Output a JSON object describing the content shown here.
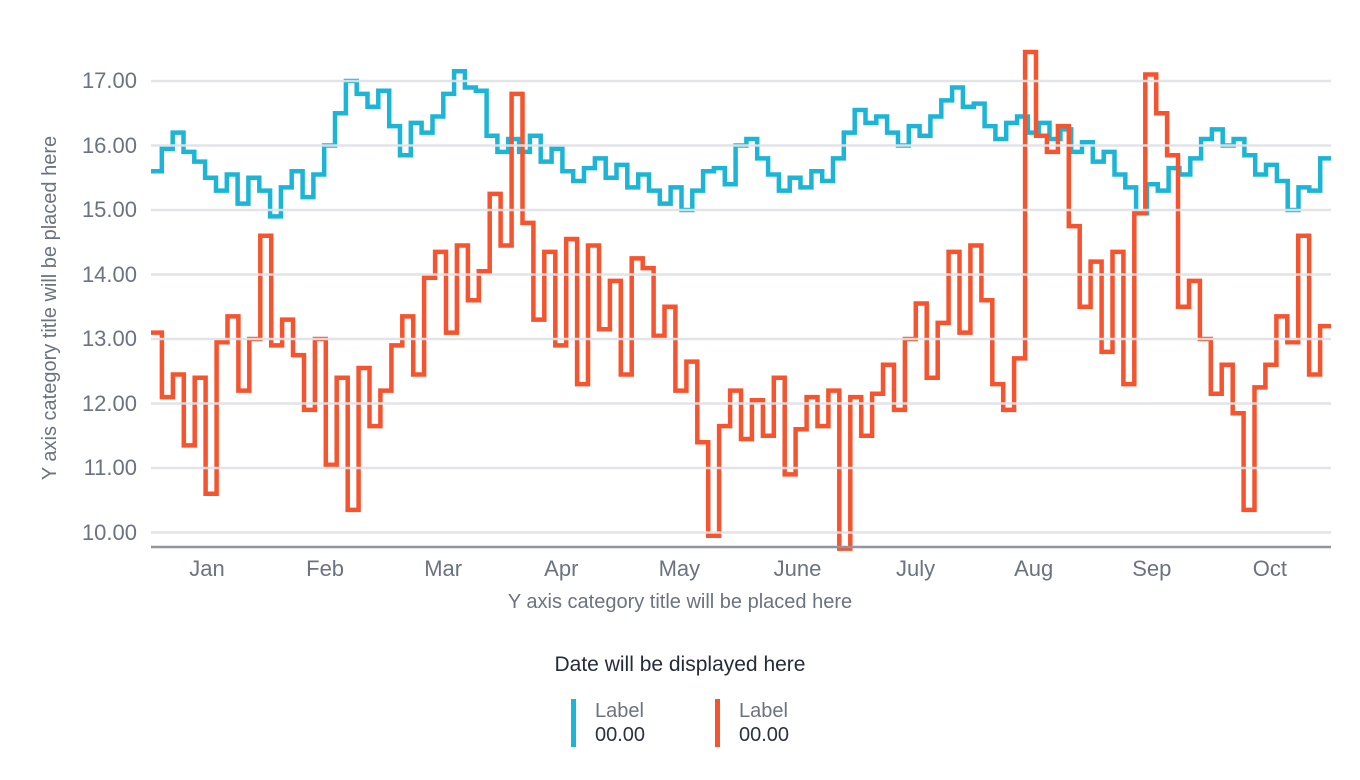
{
  "colors": {
    "series_teal": "#1db5d6",
    "series_orange": "#f5542e",
    "gridline": "#e0e2e6",
    "axis_line": "#8f96a1",
    "axis_text": "#6b7380",
    "dark_text": "#242c3a"
  },
  "tooltip": {
    "date_placeholder": "Date will be displayed here"
  },
  "chart_data": {
    "type": "line",
    "line_style": "step-after",
    "title": "",
    "y_axis_title": "Y axis category title will be placed here",
    "x_axis_title": "Y axis category title will be placed here",
    "grid": "horizontal",
    "legend_position": "bottom",
    "ylim": [
      9.7,
      17.6
    ],
    "y_tick_labels": [
      "17.00",
      "16.00",
      "15.00",
      "14.00",
      "13.00",
      "12.00",
      "11.00",
      "10.00"
    ],
    "y_tick_values": [
      17,
      16,
      15,
      14,
      13,
      12,
      11,
      10
    ],
    "x_tick_labels": [
      "Jan",
      "Feb",
      "Mar",
      "Apr",
      "May",
      "June",
      "July",
      "Aug",
      "Sep",
      "Oct"
    ],
    "series": [
      {
        "name": "Label",
        "value_label": "00.00",
        "color": "#1db5d6",
        "values": [
          15.6,
          15.95,
          16.2,
          15.9,
          15.75,
          15.5,
          15.3,
          15.55,
          15.1,
          15.5,
          15.3,
          14.9,
          15.35,
          15.6,
          15.2,
          15.55,
          16.0,
          16.5,
          17.0,
          16.8,
          16.6,
          16.85,
          16.3,
          15.85,
          16.35,
          16.2,
          16.45,
          16.8,
          17.15,
          16.9,
          16.85,
          16.15,
          15.9,
          16.1,
          15.9,
          16.15,
          15.75,
          15.95,
          15.6,
          15.45,
          15.65,
          15.8,
          15.5,
          15.7,
          15.35,
          15.55,
          15.3,
          15.1,
          15.35,
          15.0,
          15.3,
          15.6,
          15.65,
          15.4,
          16.0,
          16.1,
          15.8,
          15.55,
          15.3,
          15.5,
          15.35,
          15.6,
          15.45,
          15.8,
          16.2,
          16.55,
          16.35,
          16.45,
          16.2,
          16.0,
          16.3,
          16.15,
          16.45,
          16.7,
          16.9,
          16.6,
          16.65,
          16.3,
          16.1,
          16.35,
          16.45,
          16.2,
          16.35,
          16.1,
          16.25,
          15.9,
          16.05,
          15.75,
          15.9,
          15.55,
          15.35,
          14.95,
          15.4,
          15.3,
          15.65,
          15.55,
          15.8,
          16.1,
          16.25,
          16.0,
          16.1,
          15.85,
          15.55,
          15.7,
          15.45,
          15.0,
          15.35,
          15.3,
          15.8
        ]
      },
      {
        "name": "Label",
        "value_label": "00.00",
        "color": "#f5542e",
        "values": [
          13.1,
          12.1,
          12.45,
          11.35,
          12.4,
          10.6,
          12.95,
          13.35,
          12.2,
          13.0,
          14.6,
          12.9,
          13.3,
          12.75,
          11.9,
          13.0,
          11.05,
          12.4,
          10.35,
          12.55,
          11.65,
          12.2,
          12.9,
          13.35,
          12.45,
          13.95,
          14.35,
          13.1,
          14.45,
          13.6,
          14.05,
          15.25,
          14.45,
          16.8,
          14.8,
          13.3,
          14.35,
          12.9,
          14.55,
          12.3,
          14.45,
          13.15,
          13.9,
          12.45,
          14.25,
          14.1,
          13.05,
          13.5,
          12.2,
          12.65,
          11.4,
          9.95,
          11.65,
          12.2,
          11.45,
          12.05,
          11.5,
          12.4,
          10.9,
          11.6,
          12.1,
          11.65,
          12.2,
          9.75,
          12.1,
          11.5,
          12.15,
          12.6,
          11.9,
          13.0,
          13.55,
          12.4,
          13.25,
          14.35,
          13.1,
          14.45,
          13.6,
          12.3,
          11.9,
          12.7,
          17.45,
          16.15,
          15.9,
          16.3,
          14.75,
          13.5,
          14.2,
          12.8,
          14.35,
          12.3,
          14.95,
          17.1,
          16.5,
          15.85,
          13.5,
          13.9,
          13.0,
          12.15,
          12.6,
          11.85,
          10.35,
          12.25,
          12.6,
          13.35,
          12.95,
          14.6,
          12.45,
          13.2
        ]
      }
    ]
  }
}
